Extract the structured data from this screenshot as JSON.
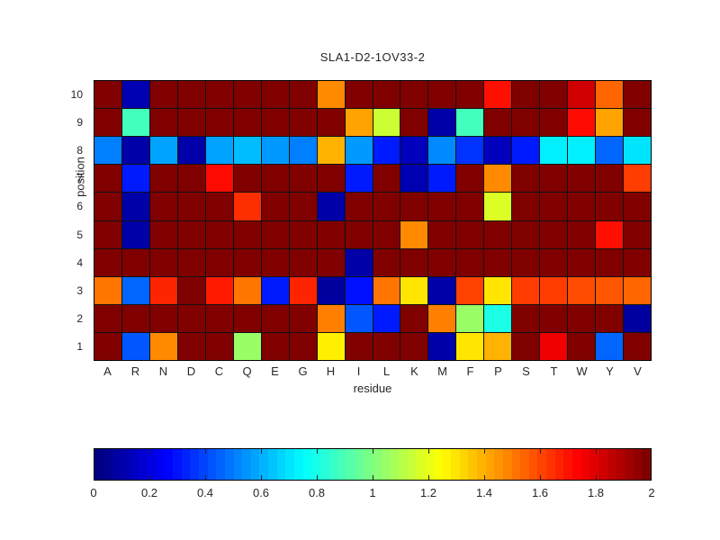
{
  "chart_data": {
    "type": "heatmap",
    "title": "SLA1-D2-1OV33-2",
    "xlabel": "residue",
    "ylabel": "position",
    "x_categories": [
      "A",
      "R",
      "N",
      "D",
      "C",
      "Q",
      "E",
      "G",
      "H",
      "I",
      "L",
      "K",
      "M",
      "F",
      "P",
      "S",
      "T",
      "W",
      "Y",
      "V"
    ],
    "y_categories_top_to_bottom": [
      "10",
      "9",
      "8",
      "7",
      "6",
      "5",
      "4",
      "3",
      "2",
      "1"
    ],
    "colormap": "jet",
    "color_range": [
      0,
      2
    ],
    "colorbar_ticks": [
      "0",
      "0.2",
      "0.4",
      "0.6",
      "0.8",
      "1",
      "1.2",
      "1.4",
      "1.6",
      "1.8",
      "2"
    ],
    "colorbar_tick_values": [
      0,
      0.2,
      0.4,
      0.6,
      0.8,
      1,
      1.2,
      1.4,
      1.6,
      1.8,
      2
    ],
    "grid_lines": true,
    "rows_top_to_bottom": [
      [
        2,
        0.1,
        2,
        2,
        2,
        2,
        2,
        2,
        1.48,
        2,
        2,
        2,
        2,
        2,
        1.72,
        2,
        2,
        1.84,
        1.55,
        2
      ],
      [
        2,
        0.88,
        2,
        2,
        2,
        2,
        2,
        2,
        2,
        1.43,
        1.15,
        2,
        0.08,
        0.88,
        2,
        2,
        2,
        1.73,
        1.43,
        2
      ],
      [
        0.5,
        0.08,
        0.57,
        0.08,
        0.57,
        0.62,
        0.55,
        0.5,
        1.4,
        0.55,
        0.3,
        0.12,
        0.52,
        0.35,
        0.12,
        0.3,
        0.72,
        0.72,
        0.45,
        0.7
      ],
      [
        2,
        0.3,
        2,
        2,
        1.73,
        2,
        2,
        2,
        2,
        0.3,
        2,
        0.1,
        0.3,
        2,
        1.48,
        2,
        2,
        2,
        2,
        1.63
      ],
      [
        2,
        0.08,
        2,
        2,
        2,
        1.66,
        2,
        2,
        0.08,
        2,
        2,
        2,
        2,
        2,
        1.18,
        2,
        2,
        2,
        2,
        2
      ],
      [
        2,
        0.08,
        2,
        2,
        2,
        2,
        2,
        2,
        2,
        2,
        2,
        1.48,
        2,
        2,
        2,
        2,
        2,
        2,
        1.72,
        2
      ],
      [
        2,
        2,
        2,
        2,
        2,
        2,
        2,
        2,
        2,
        0.08,
        2,
        2,
        2,
        2,
        2,
        2,
        2,
        2,
        2,
        2
      ],
      [
        1.52,
        0.45,
        1.68,
        2,
        1.7,
        1.52,
        0.3,
        1.68,
        0.06,
        0.28,
        1.52,
        1.3,
        0.08,
        1.62,
        1.3,
        1.63,
        1.63,
        1.6,
        1.58,
        1.55
      ],
      [
        2,
        2,
        2,
        2,
        2,
        2,
        2,
        2,
        1.5,
        0.42,
        0.3,
        2,
        1.5,
        1.05,
        0.8,
        2,
        2,
        2,
        2,
        0.06
      ],
      [
        2,
        0.42,
        1.48,
        2,
        2,
        1.05,
        2,
        2,
        1.28,
        2,
        2,
        2,
        0.08,
        1.3,
        1.4,
        2,
        1.78,
        2,
        0.45,
        2
      ]
    ]
  }
}
